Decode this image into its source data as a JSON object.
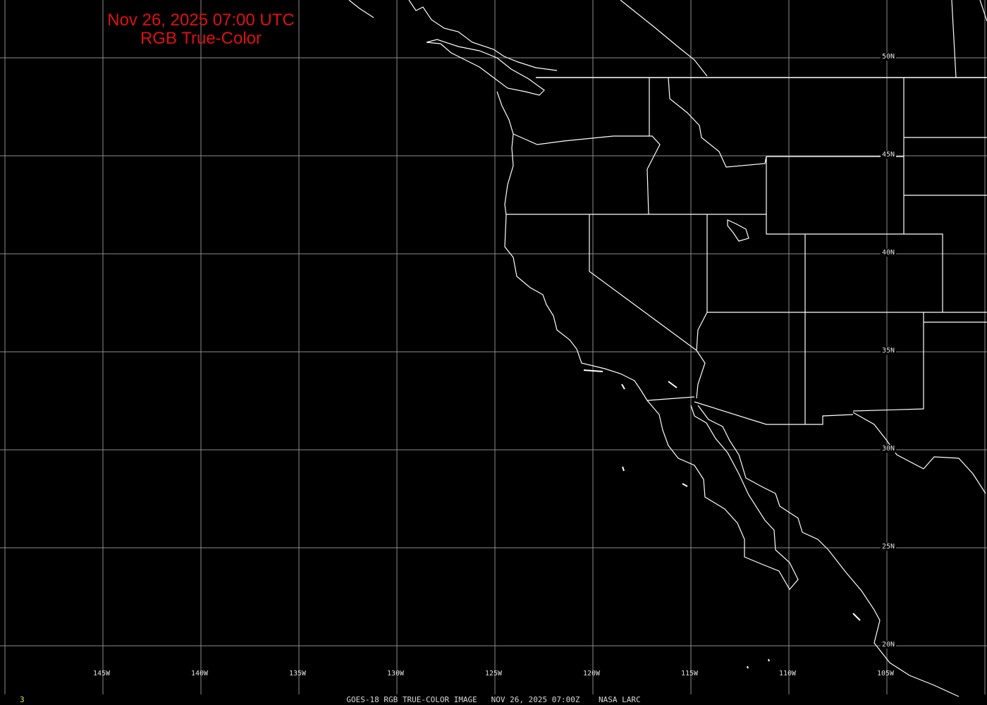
{
  "title": {
    "line1": "Nov 26, 2025 07:00 UTC",
    "line2": "RGB True-Color"
  },
  "caption": "GOES-18 RGB TRUE-COLOR IMAGE   NOV 26, 2025 07:00Z    NASA LARC",
  "frame_number": "3",
  "longitude_labels": [
    "145W",
    "140W",
    "135W",
    "130W",
    "125W",
    "120W",
    "115W",
    "110W",
    "105W"
  ],
  "latitude_labels": [
    "50N",
    "45N",
    "40N",
    "35N",
    "30N",
    "25N",
    "20N"
  ],
  "colors": {
    "background": "#000000",
    "title": "#e01010",
    "grid": "#8c8c8c",
    "boundaries": "#ffffff",
    "frame_number": "#e8e060"
  }
}
